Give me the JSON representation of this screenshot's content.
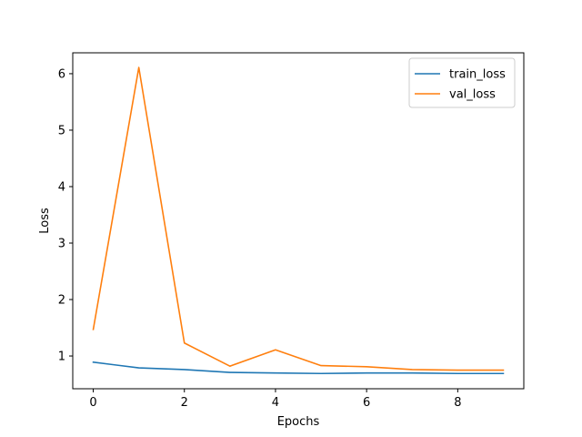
{
  "chart_data": {
    "type": "line",
    "title": "",
    "xlabel": "Epochs",
    "ylabel": "Loss",
    "x": [
      0,
      1,
      2,
      3,
      4,
      5,
      6,
      7,
      8,
      9
    ],
    "xlim": [
      -0.45,
      9.45
    ],
    "ylim": [
      0.42,
      6.37
    ],
    "xticks": [
      0,
      2,
      4,
      6,
      8
    ],
    "yticks": [
      1,
      2,
      3,
      4,
      5,
      6
    ],
    "grid": false,
    "legend_position": "top-right",
    "series": [
      {
        "name": "train_loss",
        "color": "#1f77b4",
        "values": [
          0.89,
          0.79,
          0.76,
          0.71,
          0.7,
          0.69,
          0.7,
          0.7,
          0.69,
          0.69
        ]
      },
      {
        "name": "val_loss",
        "color": "#ff7f0e",
        "values": [
          1.47,
          6.11,
          1.23,
          0.82,
          1.11,
          0.83,
          0.81,
          0.76,
          0.75,
          0.75
        ]
      }
    ]
  }
}
